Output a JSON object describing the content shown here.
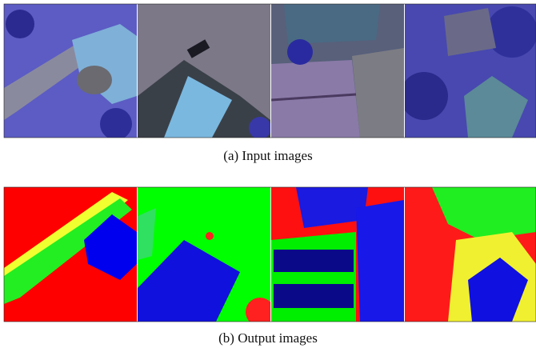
{
  "panels": [
    {
      "caption": "(a) Input images"
    },
    {
      "caption": "(b) Output images"
    }
  ]
}
